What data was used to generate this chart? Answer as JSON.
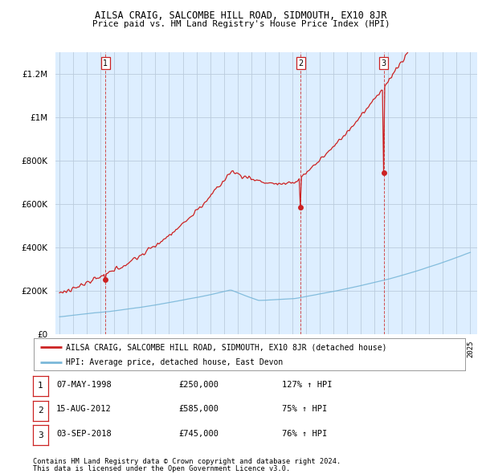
{
  "title": "AILSA CRAIG, SALCOMBE HILL ROAD, SIDMOUTH, EX10 8JR",
  "subtitle": "Price paid vs. HM Land Registry's House Price Index (HPI)",
  "legend_line1": "AILSA CRAIG, SALCOMBE HILL ROAD, SIDMOUTH, EX10 8JR (detached house)",
  "legend_line2": "HPI: Average price, detached house, East Devon",
  "transactions": [
    {
      "num": 1,
      "date": "07-MAY-1998",
      "price": 250000,
      "pct": "127%",
      "x_year": 1998.36
    },
    {
      "num": 2,
      "date": "15-AUG-2012",
      "price": 585000,
      "pct": "75%",
      "x_year": 2012.62
    },
    {
      "num": 3,
      "date": "03-SEP-2018",
      "price": 745000,
      "pct": "76%",
      "x_year": 2018.67
    }
  ],
  "footer1": "Contains HM Land Registry data © Crown copyright and database right 2024.",
  "footer2": "This data is licensed under the Open Government Licence v3.0.",
  "ylim": [
    0,
    1300000
  ],
  "yticks": [
    0,
    200000,
    400000,
    600000,
    800000,
    1000000,
    1200000
  ],
  "xlim_start": 1994.7,
  "xlim_end": 2025.5,
  "hpi_color": "#7ab8d9",
  "price_color": "#cc2222",
  "vline_color": "#cc2222",
  "chart_bg": "#ddeeff",
  "bg_color": "#ffffff",
  "grid_color": "#bbccdd"
}
